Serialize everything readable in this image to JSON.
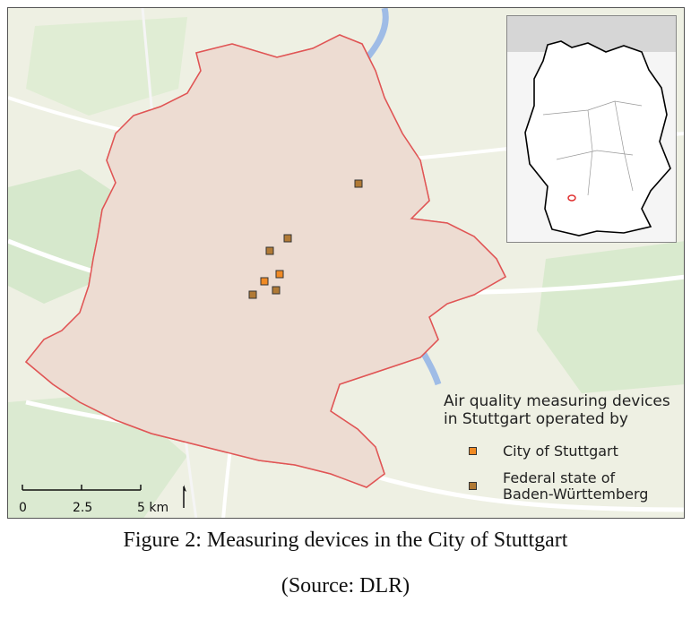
{
  "legend": {
    "title": "Air quality measuring devices\nin Stuttgart operated by",
    "items": [
      {
        "label": "City of Stuttgart",
        "color": "#f08a24"
      },
      {
        "label": "Federal state of\nBaden-Württemberg",
        "color": "#b17a35"
      }
    ]
  },
  "scale": {
    "ticks": [
      "0",
      "2.5",
      "5 km"
    ]
  },
  "colors": {
    "boundary": "#e05555",
    "forest": "#8fcc85",
    "urban": "#e8d3c8",
    "river": "#a8c4e8",
    "city_device": "#f08a24",
    "state_device": "#b17a35"
  },
  "caption": {
    "line1": "Figure 2: Measuring devices in the City of Stuttgart",
    "line2": "(Source: DLR)"
  }
}
